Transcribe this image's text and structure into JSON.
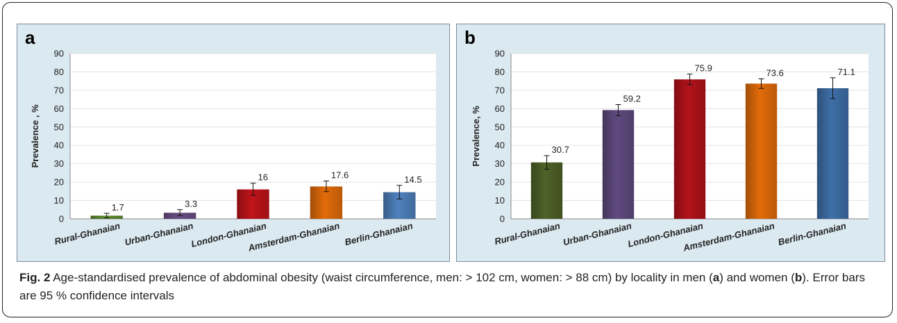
{
  "chart_data": [
    {
      "type": "bar",
      "panel_label": "a",
      "ylabel": "Prevalence , %",
      "ylim": [
        0,
        90
      ],
      "yticks": [
        0,
        10,
        20,
        30,
        40,
        50,
        60,
        70,
        80,
        90
      ],
      "grid": true,
      "categories": [
        "Rural-Ghanaian",
        "Urban-Ghanaian",
        "London-Ghanaian",
        "Amsterdam-Ghanaian",
        "Berlin-Ghanaian"
      ],
      "values": [
        1.7,
        3.3,
        16,
        17.6,
        14.5
      ],
      "value_labels": [
        "1.7",
        "3.3",
        "16",
        "17.6",
        "14.5"
      ],
      "error_low": [
        0.5,
        1.8,
        12.8,
        14.8,
        10.8
      ],
      "error_high": [
        3.0,
        5.0,
        19.4,
        20.6,
        18.2
      ],
      "colors": [
        "#5e8a2e",
        "#6a4f86",
        "#c0141a",
        "#e36c0a",
        "#4f81bd"
      ]
    },
    {
      "type": "bar",
      "panel_label": "b",
      "ylabel": "Prevalence, %",
      "ylim": [
        0,
        90
      ],
      "yticks": [
        0,
        10,
        20,
        30,
        40,
        50,
        60,
        70,
        80,
        90
      ],
      "grid": true,
      "categories": [
        "Rural-Ghanaian",
        "Urban-Ghanaian",
        "London-Ghanaian",
        "Amsterdam-Ghanaian",
        "Berlin-Ghanaian"
      ],
      "values": [
        30.7,
        59.2,
        75.9,
        73.6,
        71.1
      ],
      "value_labels": [
        "30.7",
        "59.2",
        "75.9",
        "73.6",
        "71.1"
      ],
      "error_low": [
        27.0,
        56.2,
        73.0,
        71.0,
        65.4
      ],
      "error_high": [
        34.4,
        62.2,
        78.8,
        76.2,
        76.8
      ],
      "colors": [
        "#4f6228",
        "#5f4a7f",
        "#b3121a",
        "#e36c0a",
        "#3f6fa8"
      ]
    }
  ],
  "caption": {
    "fig_label": "Fig. 2",
    "text_before_a": " Age-standardised prevalence of abdominal obesity (waist circumference, men: > 102 cm, women: > 88 cm) by locality in men (",
    "a": "a",
    "text_between": ") and women (",
    "b": "b",
    "text_after_b": "). Error bars are 95 % confidence intervals"
  }
}
